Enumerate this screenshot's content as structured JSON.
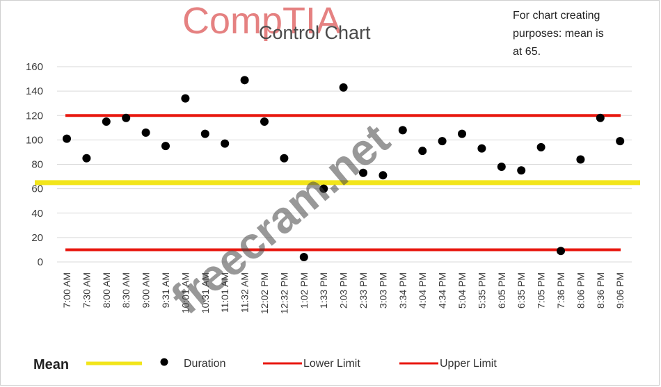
{
  "chart_data": {
    "type": "scatter",
    "title": "Control Chart",
    "annotation": "For chart creating purposes: mean is at 65.",
    "annotation_lines": [
      "For chart creating",
      "purposes: mean is",
      "at 65."
    ],
    "categories": [
      "7:00 AM",
      "7:30 AM",
      "8:00 AM",
      "8:30 AM",
      "9:00 AM",
      "9:31 AM",
      "10:01 AM",
      "10:31 AM",
      "11:01 AM",
      "11:32 AM",
      "12:02 PM",
      "12:32 PM",
      "1:02 PM",
      "1:33 PM",
      "2:03 PM",
      "2:33 PM",
      "3:03 PM",
      "3:34 PM",
      "4:04 PM",
      "4:34 PM",
      "5:04 PM",
      "5:35 PM",
      "6:05 PM",
      "6:35 PM",
      "7:05 PM",
      "7:36 PM",
      "8:06 PM",
      "8:36 PM",
      "9:06 PM"
    ],
    "series": [
      {
        "name": "Duration",
        "type": "scatter",
        "color": "#000000",
        "values": [
          101,
          85,
          115,
          118,
          106,
          95,
          134,
          105,
          97,
          149,
          115,
          85,
          4,
          60,
          143,
          73,
          71,
          108,
          91,
          99,
          105,
          93,
          78,
          75,
          94,
          9,
          84,
          118,
          99
        ]
      },
      {
        "name": "Mean",
        "type": "line",
        "color": "#f2e51a",
        "value": 65
      },
      {
        "name": "Lower Limit",
        "type": "line",
        "color": "#e8170f",
        "value": 10
      },
      {
        "name": "Upper Limit",
        "type": "line",
        "color": "#e8170f",
        "value": 120
      }
    ],
    "ylim": [
      0,
      160
    ],
    "yticks": [
      0,
      20,
      40,
      60,
      80,
      100,
      120,
      140,
      160
    ],
    "grid": true,
    "legend": "bottom"
  },
  "legend": {
    "mean_label": "Mean",
    "duration_label": "Duration",
    "lower_label": "Lower Limit",
    "upper_label": "Upper Limit"
  },
  "watermarks": {
    "logo": "CompTIA",
    "site": "freecram.net"
  },
  "colors": {
    "mean": "#f2e51a",
    "limit": "#e8170f",
    "point": "#000000",
    "grid": "#d9d9d9"
  }
}
